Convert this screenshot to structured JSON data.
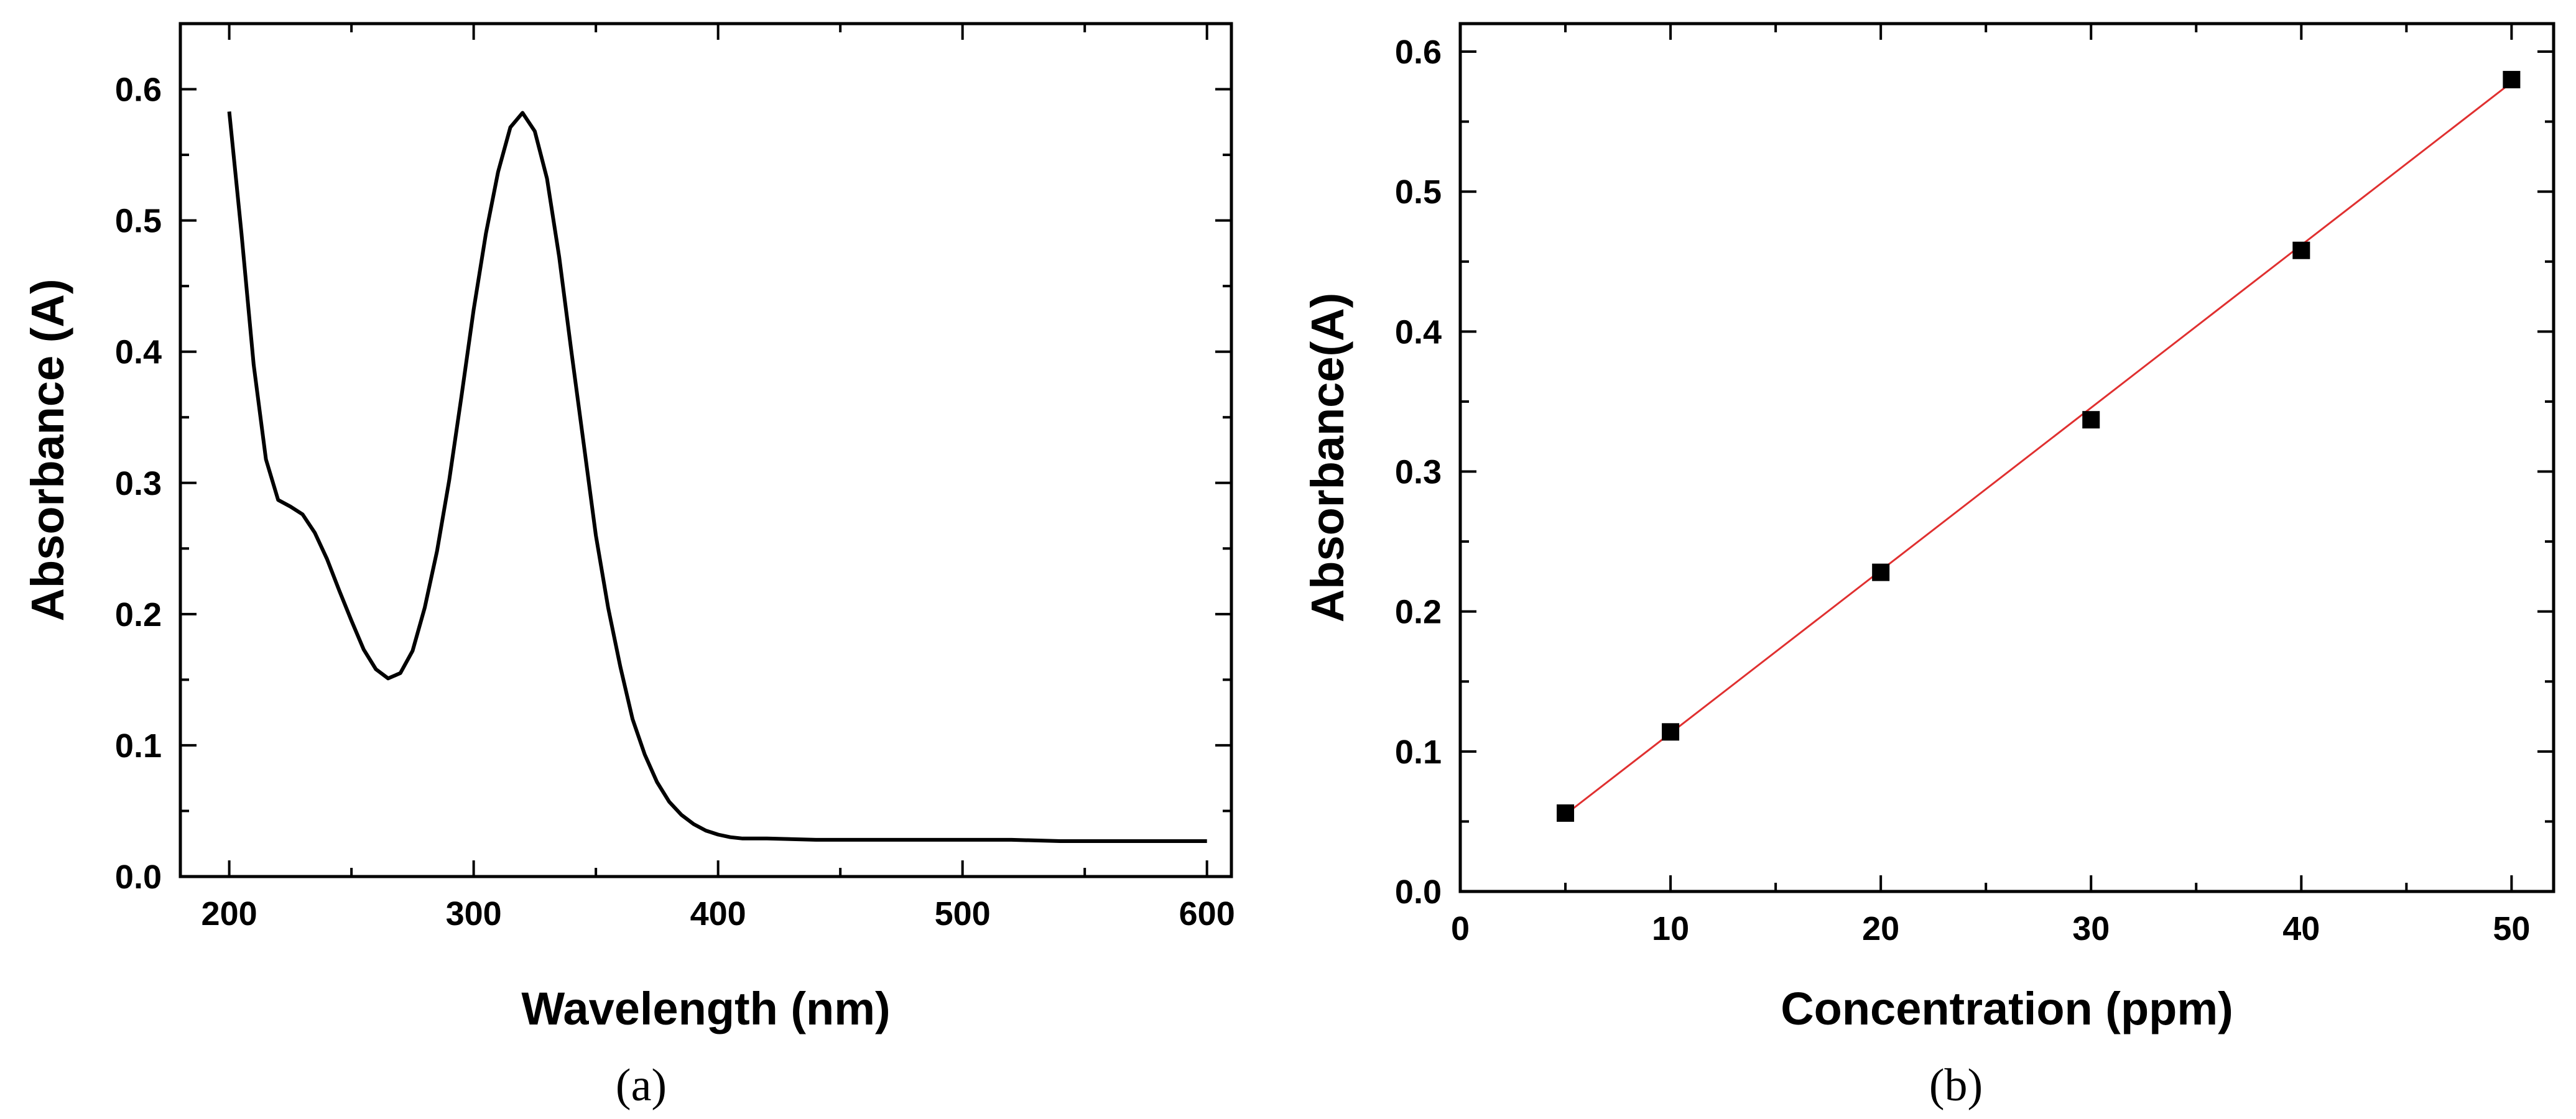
{
  "chart_data": [
    {
      "type": "line",
      "panel_label": "(a)",
      "xlabel": "Wavelength (nm)",
      "ylabel": "Absorbance (A)",
      "xlim": [
        180,
        610
      ],
      "ylim": [
        0,
        0.65
      ],
      "x_ticks": [
        200,
        300,
        400,
        500,
        600
      ],
      "y_ticks": [
        0.0,
        0.1,
        0.2,
        0.3,
        0.4,
        0.5,
        0.6
      ],
      "x_tick_labels": [
        "200",
        "300",
        "400",
        "500",
        "600"
      ],
      "y_tick_labels": [
        "0.0",
        "0.1",
        "0.2",
        "0.3",
        "0.4",
        "0.5",
        "0.6"
      ],
      "grid": false,
      "series": [
        {
          "color": "#000000",
          "x": [
            200,
            205,
            210,
            215,
            220,
            225,
            230,
            235,
            240,
            245,
            250,
            255,
            260,
            265,
            270,
            275,
            280,
            285,
            290,
            295,
            300,
            305,
            310,
            315,
            320,
            325,
            330,
            335,
            340,
            345,
            350,
            355,
            360,
            365,
            370,
            375,
            380,
            385,
            390,
            395,
            400,
            405,
            410,
            420,
            440,
            460,
            480,
            500,
            520,
            540,
            560,
            580,
            600
          ],
          "y": [
            0.583,
            0.49,
            0.39,
            0.318,
            0.287,
            0.282,
            0.276,
            0.262,
            0.242,
            0.218,
            0.195,
            0.173,
            0.158,
            0.151,
            0.155,
            0.172,
            0.205,
            0.248,
            0.302,
            0.366,
            0.432,
            0.49,
            0.537,
            0.571,
            0.582,
            0.568,
            0.532,
            0.472,
            0.4,
            0.33,
            0.26,
            0.205,
            0.16,
            0.12,
            0.093,
            0.072,
            0.057,
            0.047,
            0.04,
            0.035,
            0.032,
            0.03,
            0.029,
            0.029,
            0.028,
            0.028,
            0.028,
            0.028,
            0.028,
            0.027,
            0.027,
            0.027,
            0.027
          ]
        }
      ]
    },
    {
      "type": "scatter",
      "panel_label": "(b)",
      "xlabel": "Concentration (ppm)",
      "ylabel": "Absorbance(A)",
      "xlim": [
        0,
        52
      ],
      "ylim": [
        0,
        0.62
      ],
      "x_ticks": [
        0,
        10,
        20,
        30,
        40,
        50
      ],
      "y_ticks": [
        0.0,
        0.1,
        0.2,
        0.3,
        0.4,
        0.5,
        0.6
      ],
      "x_tick_labels": [
        "0",
        "10",
        "20",
        "30",
        "40",
        "50"
      ],
      "y_tick_labels": [
        "0.0",
        "0.1",
        "0.2",
        "0.3",
        "0.4",
        "0.5",
        "0.6"
      ],
      "grid": false,
      "series": [
        {
          "marker": "square",
          "color": "#000000",
          "x": [
            5,
            10,
            20,
            30,
            40,
            50
          ],
          "y": [
            0.056,
            0.114,
            0.228,
            0.337,
            0.458,
            0.58
          ]
        }
      ],
      "fit_line": {
        "color": "#e03030",
        "x": [
          5,
          50
        ],
        "y": [
          0.055,
          0.578
        ]
      }
    }
  ]
}
